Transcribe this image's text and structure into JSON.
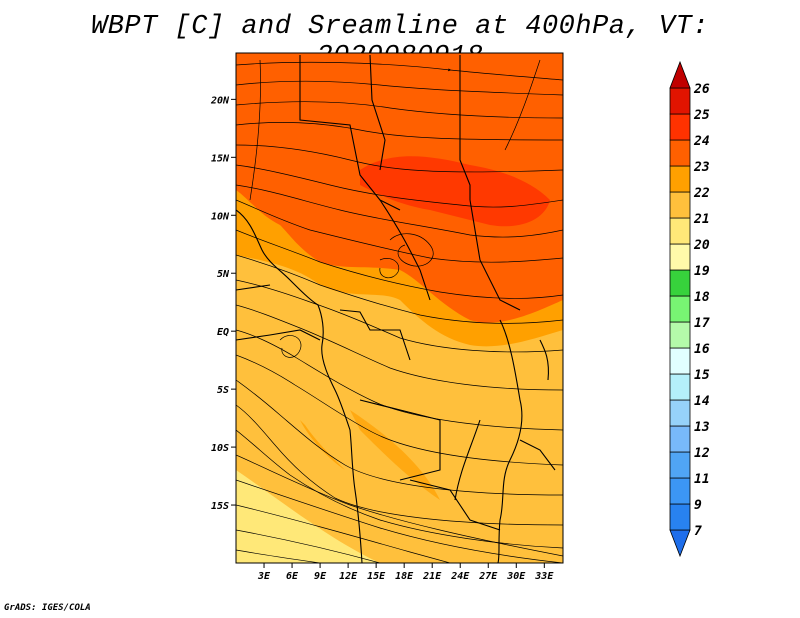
{
  "title": "WBPT [C] and Sreamline at 400hPa, VT: 2020080918",
  "credit": "GrADS: IGES/COLA",
  "map": {
    "lon_range": [
      0,
      35
    ],
    "lat_range": [
      -20,
      24
    ],
    "lat_ticks": [
      {
        "label": "20N",
        "lat": 20
      },
      {
        "label": "15N",
        "lat": 15
      },
      {
        "label": "10N",
        "lat": 10
      },
      {
        "label": "5N",
        "lat": 5
      },
      {
        "label": "EQ",
        "lat": 0
      },
      {
        "label": "5S",
        "lat": -5
      },
      {
        "label": "10S",
        "lat": -10
      },
      {
        "label": "15S",
        "lat": -15
      }
    ],
    "lon_ticks": [
      {
        "label": "3E",
        "lon": 3
      },
      {
        "label": "6E",
        "lon": 6
      },
      {
        "label": "9E",
        "lon": 9
      },
      {
        "label": "12E",
        "lon": 12
      },
      {
        "label": "15E",
        "lon": 15
      },
      {
        "label": "18E",
        "lon": 18
      },
      {
        "label": "21E",
        "lon": 21
      },
      {
        "label": "24E",
        "lon": 24
      },
      {
        "label": "27E",
        "lon": 27
      },
      {
        "label": "30E",
        "lon": 30
      },
      {
        "label": "33E",
        "lon": 33
      }
    ]
  },
  "colorbar": {
    "levels": [
      "7",
      "9",
      "11",
      "12",
      "13",
      "14",
      "15",
      "16",
      "17",
      "18",
      "19",
      "20",
      "21",
      "22",
      "23",
      "24",
      "25",
      "26"
    ],
    "colors": [
      "#1e6eeb",
      "#2882f0",
      "#3c96f5",
      "#50a5f5",
      "#78b9fa",
      "#96d2fa",
      "#b4f0fa",
      "#e1ffff",
      "#b4faaa",
      "#78f573",
      "#37d23c",
      "#fffaaa",
      "#ffe878",
      "#ffc03c",
      "#ffa000",
      "#ff6000",
      "#ff3200",
      "#e11400",
      "#c00000"
    ]
  },
  "colors": {
    "frame": "#000000",
    "border": "#000000"
  }
}
